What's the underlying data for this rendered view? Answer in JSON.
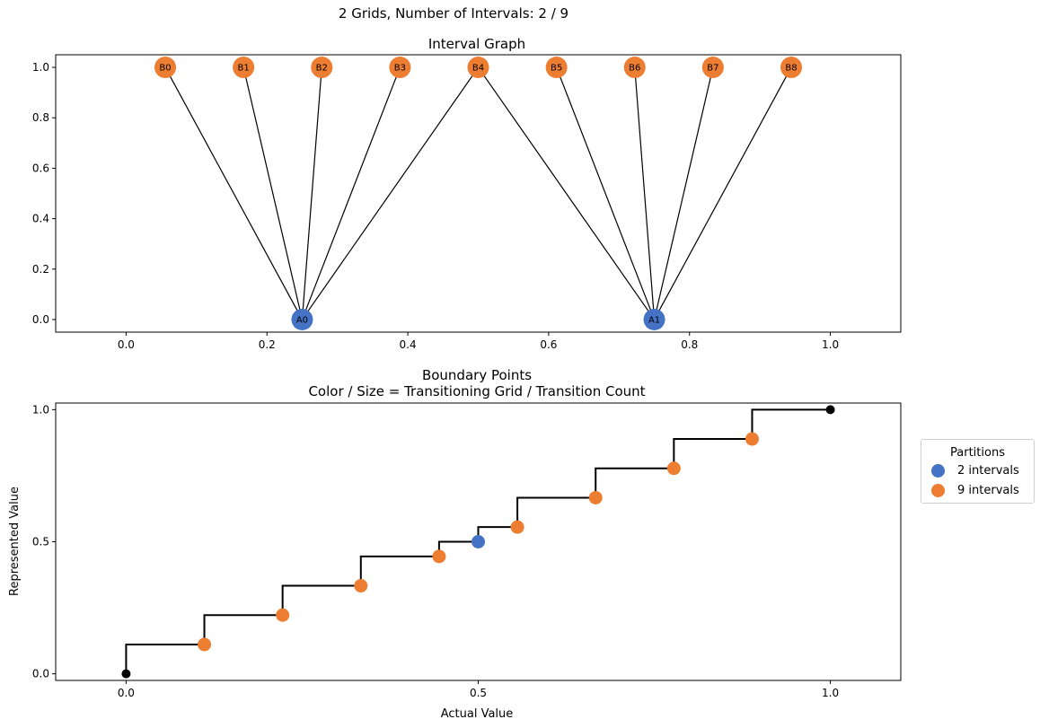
{
  "figure": {
    "suptitle": "2 Grids, Number of Intervals: 2 / 9"
  },
  "colors": {
    "grid_a": "#4472C4",
    "grid_b": "#ED7D31",
    "edge": "#000000"
  },
  "chart_data": [
    {
      "type": "network",
      "title": "Interval Graph",
      "xlim": [
        -0.1,
        1.1
      ],
      "ylim": [
        -0.05,
        1.05
      ],
      "xticks": [
        0.0,
        0.2,
        0.4,
        0.6,
        0.8,
        1.0
      ],
      "xtick_labels": [
        "0.0",
        "0.2",
        "0.4",
        "0.6",
        "0.8",
        "1.0"
      ],
      "yticks": [
        0.0,
        0.2,
        0.4,
        0.6,
        0.8,
        1.0
      ],
      "ytick_labels": [
        "0.0",
        "0.2",
        "0.4",
        "0.6",
        "0.8",
        "1.0"
      ],
      "nodes": [
        {
          "id": "A0",
          "x": 0.25,
          "y": 0.0,
          "group": "grid_a"
        },
        {
          "id": "A1",
          "x": 0.75,
          "y": 0.0,
          "group": "grid_a"
        },
        {
          "id": "B0",
          "x": 0.0556,
          "y": 1.0,
          "group": "grid_b"
        },
        {
          "id": "B1",
          "x": 0.1667,
          "y": 1.0,
          "group": "grid_b"
        },
        {
          "id": "B2",
          "x": 0.2778,
          "y": 1.0,
          "group": "grid_b"
        },
        {
          "id": "B3",
          "x": 0.3889,
          "y": 1.0,
          "group": "grid_b"
        },
        {
          "id": "B4",
          "x": 0.5,
          "y": 1.0,
          "group": "grid_b"
        },
        {
          "id": "B5",
          "x": 0.6111,
          "y": 1.0,
          "group": "grid_b"
        },
        {
          "id": "B6",
          "x": 0.7222,
          "y": 1.0,
          "group": "grid_b"
        },
        {
          "id": "B7",
          "x": 0.8333,
          "y": 1.0,
          "group": "grid_b"
        },
        {
          "id": "B8",
          "x": 0.9444,
          "y": 1.0,
          "group": "grid_b"
        }
      ],
      "edges": [
        [
          "A0",
          "B0"
        ],
        [
          "A0",
          "B1"
        ],
        [
          "A0",
          "B2"
        ],
        [
          "A0",
          "B3"
        ],
        [
          "A0",
          "B4"
        ],
        [
          "A1",
          "B4"
        ],
        [
          "A1",
          "B5"
        ],
        [
          "A1",
          "B6"
        ],
        [
          "A1",
          "B7"
        ],
        [
          "A1",
          "B8"
        ]
      ]
    },
    {
      "type": "step",
      "title": "Boundary Points",
      "subtitle": "Color / Size = Transitioning Grid / Transition Count",
      "xlabel": "Actual Value",
      "ylabel": "Represented Value",
      "xlim": [
        -0.1,
        1.1
      ],
      "ylim": [
        -0.025,
        1.025
      ],
      "xticks": [
        0.0,
        0.5,
        1.0
      ],
      "xtick_labels": [
        "0.0",
        "0.5",
        "1.0"
      ],
      "yticks": [
        0.0,
        0.5,
        1.0
      ],
      "ytick_labels": [
        "0.0",
        "0.5",
        "1.0"
      ],
      "step_x": [
        0.0,
        0.1111,
        0.2222,
        0.3333,
        0.4444,
        0.5,
        0.5556,
        0.6667,
        0.7778,
        0.8889,
        1.0
      ],
      "step_y": [
        0.1111,
        0.2222,
        0.3333,
        0.4444,
        0.5,
        0.5556,
        0.6667,
        0.7778,
        0.8889,
        1.0
      ],
      "start_point": {
        "x": 0.0,
        "y": 0.0
      },
      "end_point": {
        "x": 1.0,
        "y": 1.0
      },
      "points": [
        {
          "x": 0.1111,
          "y": 0.1111,
          "group": "grid_b"
        },
        {
          "x": 0.2222,
          "y": 0.2222,
          "group": "grid_b"
        },
        {
          "x": 0.3333,
          "y": 0.3333,
          "group": "grid_b"
        },
        {
          "x": 0.4444,
          "y": 0.4444,
          "group": "grid_b"
        },
        {
          "x": 0.5,
          "y": 0.5,
          "group": "grid_a"
        },
        {
          "x": 0.5556,
          "y": 0.5556,
          "group": "grid_b"
        },
        {
          "x": 0.6667,
          "y": 0.6667,
          "group": "grid_b"
        },
        {
          "x": 0.7778,
          "y": 0.7778,
          "group": "grid_b"
        },
        {
          "x": 0.8889,
          "y": 0.8889,
          "group": "grid_b"
        }
      ],
      "legend": {
        "title": "Partitions",
        "placement": "outside-right",
        "entries": [
          {
            "label": "2 intervals",
            "group": "grid_a"
          },
          {
            "label": "9 intervals",
            "group": "grid_b"
          }
        ]
      }
    }
  ]
}
